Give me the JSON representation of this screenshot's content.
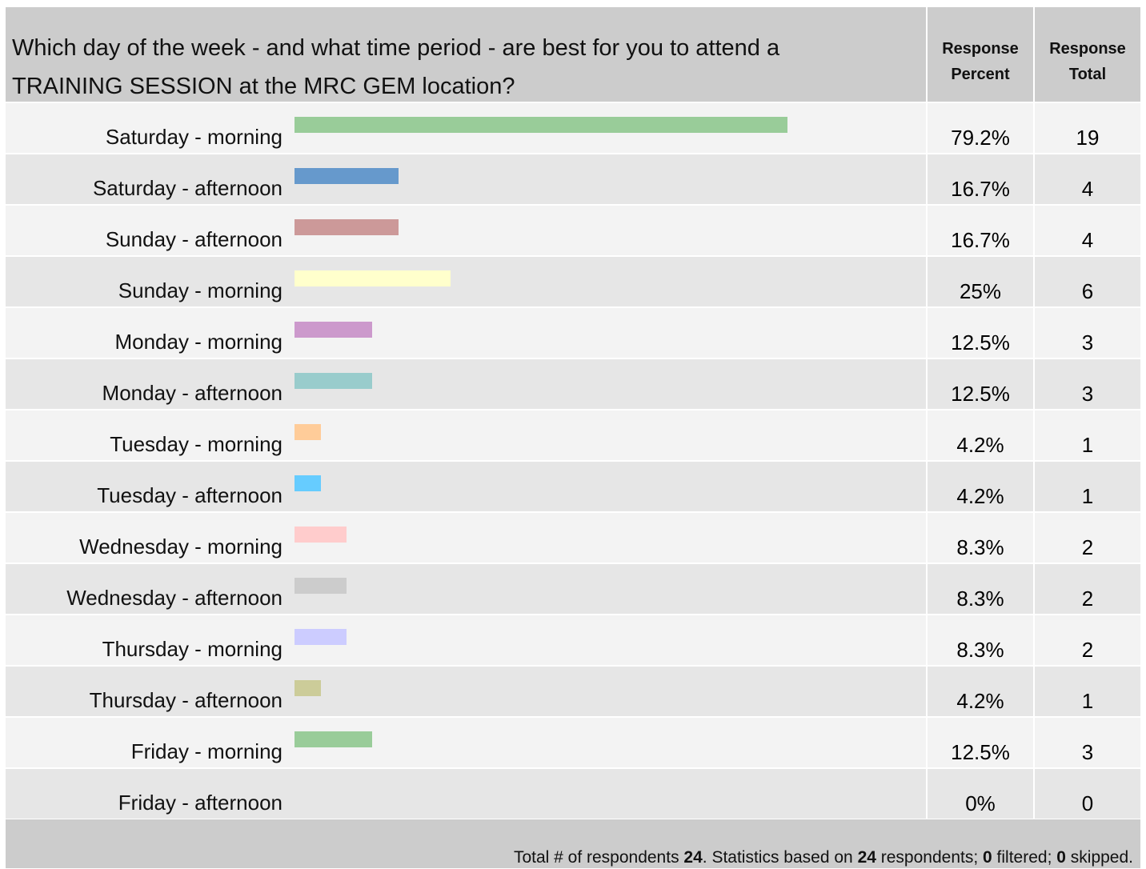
{
  "question": {
    "line1": "Which day of the week - and what time period - are best for you to attend a",
    "line2": "TRAINING SESSION at the MRC GEM location?"
  },
  "columns": {
    "percent": [
      "Response",
      "Percent"
    ],
    "total": [
      "Response",
      "Total"
    ]
  },
  "chart_data": {
    "type": "bar",
    "orientation": "horizontal",
    "title": "Which day of the week - and what time period - are best for you to attend a TRAINING SESSION at the MRC GEM location?",
    "xlim": [
      0,
      100
    ],
    "categories": [
      "Saturday - morning",
      "Saturday - afternoon",
      "Sunday - afternoon",
      "Sunday - morning",
      "Monday - morning",
      "Monday - afternoon",
      "Tuesday - morning",
      "Tuesday - afternoon",
      "Wednesday - morning",
      "Wednesday - afternoon",
      "Thursday - morning",
      "Thursday - afternoon",
      "Friday - morning",
      "Friday - afternoon"
    ],
    "values": [
      79.2,
      16.7,
      16.7,
      25,
      12.5,
      12.5,
      4.2,
      4.2,
      8.3,
      8.3,
      8.3,
      4.2,
      12.5,
      0
    ],
    "percent_labels": [
      "79.2%",
      "16.7%",
      "16.7%",
      "25%",
      "12.5%",
      "12.5%",
      "4.2%",
      "4.2%",
      "8.3%",
      "8.3%",
      "8.3%",
      "4.2%",
      "12.5%",
      "0%"
    ],
    "totals": [
      "19",
      "4",
      "4",
      "6",
      "3",
      "3",
      "1",
      "1",
      "2",
      "2",
      "2",
      "1",
      "3",
      "0"
    ],
    "colors": [
      "#99cc99",
      "#6699cc",
      "#cc9999",
      "#ffffcc",
      "#cc99cc",
      "#99cccc",
      "#ffcc99",
      "#66ccff",
      "#ffcccc",
      "#cccccc",
      "#ccccff",
      "#cccc99",
      "#99cc99",
      "#cccccc"
    ]
  },
  "footer": {
    "t1": "Total # of respondents ",
    "respondents": "24",
    "t2": ". Statistics based on ",
    "based_on": "24",
    "t3": " respondents; ",
    "filtered": "0",
    "t4": " filtered; ",
    "skipped": "0",
    "t5": " skipped."
  }
}
